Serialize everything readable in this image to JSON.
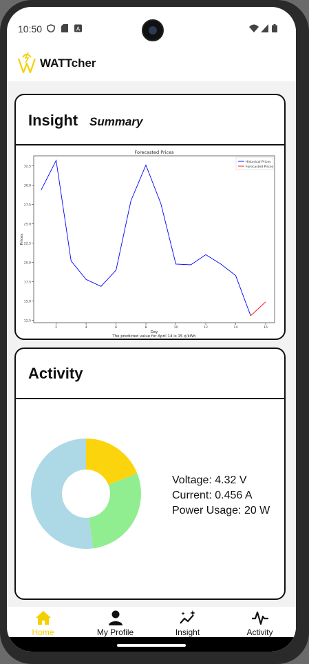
{
  "status_bar": {
    "time": "10:50",
    "icons_left": [
      "vpn-shield-icon",
      "sd-card-icon",
      "notification-a-icon"
    ],
    "icons_right": [
      "wifi-icon",
      "signal-icon",
      "battery-icon"
    ]
  },
  "app": {
    "title": "WATTcher",
    "logo": "wattcher-logo-icon",
    "accent_color": "#f5d000"
  },
  "insight_card": {
    "title": "Insight",
    "subtitle": "Summary"
  },
  "chart_data": {
    "type": "line",
    "title": "Forecasted Prices",
    "xlabel": "Day",
    "ylabel": "Prices",
    "caption": "The predicted value for April 14 is 15 ¢/kWh",
    "xticks": [
      2,
      4,
      6,
      8,
      10,
      12,
      14,
      16
    ],
    "yticks": [
      12.5,
      15.0,
      17.5,
      20.0,
      22.5,
      25.0,
      27.5,
      30.0,
      32.5
    ],
    "ytick_labels": [
      "12.5",
      "15.0",
      "17.5",
      "20.0",
      "22.5",
      "25.0",
      "27.5",
      "30.0",
      "32.5"
    ],
    "xlim": [
      0.5,
      16.6
    ],
    "ylim": [
      12.2,
      33.8
    ],
    "legend_position": "top-right",
    "series": [
      {
        "name": "Historical Prices",
        "color": "#0000ff",
        "x": [
          1,
          2,
          3,
          4,
          5,
          6,
          7,
          8,
          9,
          10,
          11,
          12,
          13,
          14,
          15
        ],
        "y": [
          29.4,
          33.2,
          20.2,
          17.8,
          16.9,
          19.0,
          28.0,
          32.6,
          27.6,
          19.8,
          19.7,
          21.0,
          19.8,
          18.3,
          13.1
        ]
      },
      {
        "name": "Forecasted Prices",
        "color": "#ff0000",
        "x": [
          15,
          16
        ],
        "y": [
          13.1,
          14.9
        ]
      }
    ]
  },
  "activity_card": {
    "title": "Activity",
    "donut": {
      "segments": [
        {
          "label": "Voltage",
          "fraction": 0.19,
          "color": "#fcd40d"
        },
        {
          "label": "Current",
          "fraction": 0.29,
          "color": "#90ee90"
        },
        {
          "label": "Power Usage",
          "fraction": 0.52,
          "color": "#add8e6"
        }
      ]
    },
    "voltage": "Voltage: 4.32 V",
    "current": "Current: 0.456 A",
    "power": "Power Usage: 20 W"
  },
  "nav": {
    "items": [
      {
        "label": "Home",
        "icon": "home-icon",
        "active": true
      },
      {
        "label": "My Profile",
        "icon": "person-icon",
        "active": false
      },
      {
        "label": "Insight",
        "icon": "insight-sparkle-icon",
        "active": false
      },
      {
        "label": "Activity",
        "icon": "activity-pulse-icon",
        "active": false
      }
    ]
  }
}
